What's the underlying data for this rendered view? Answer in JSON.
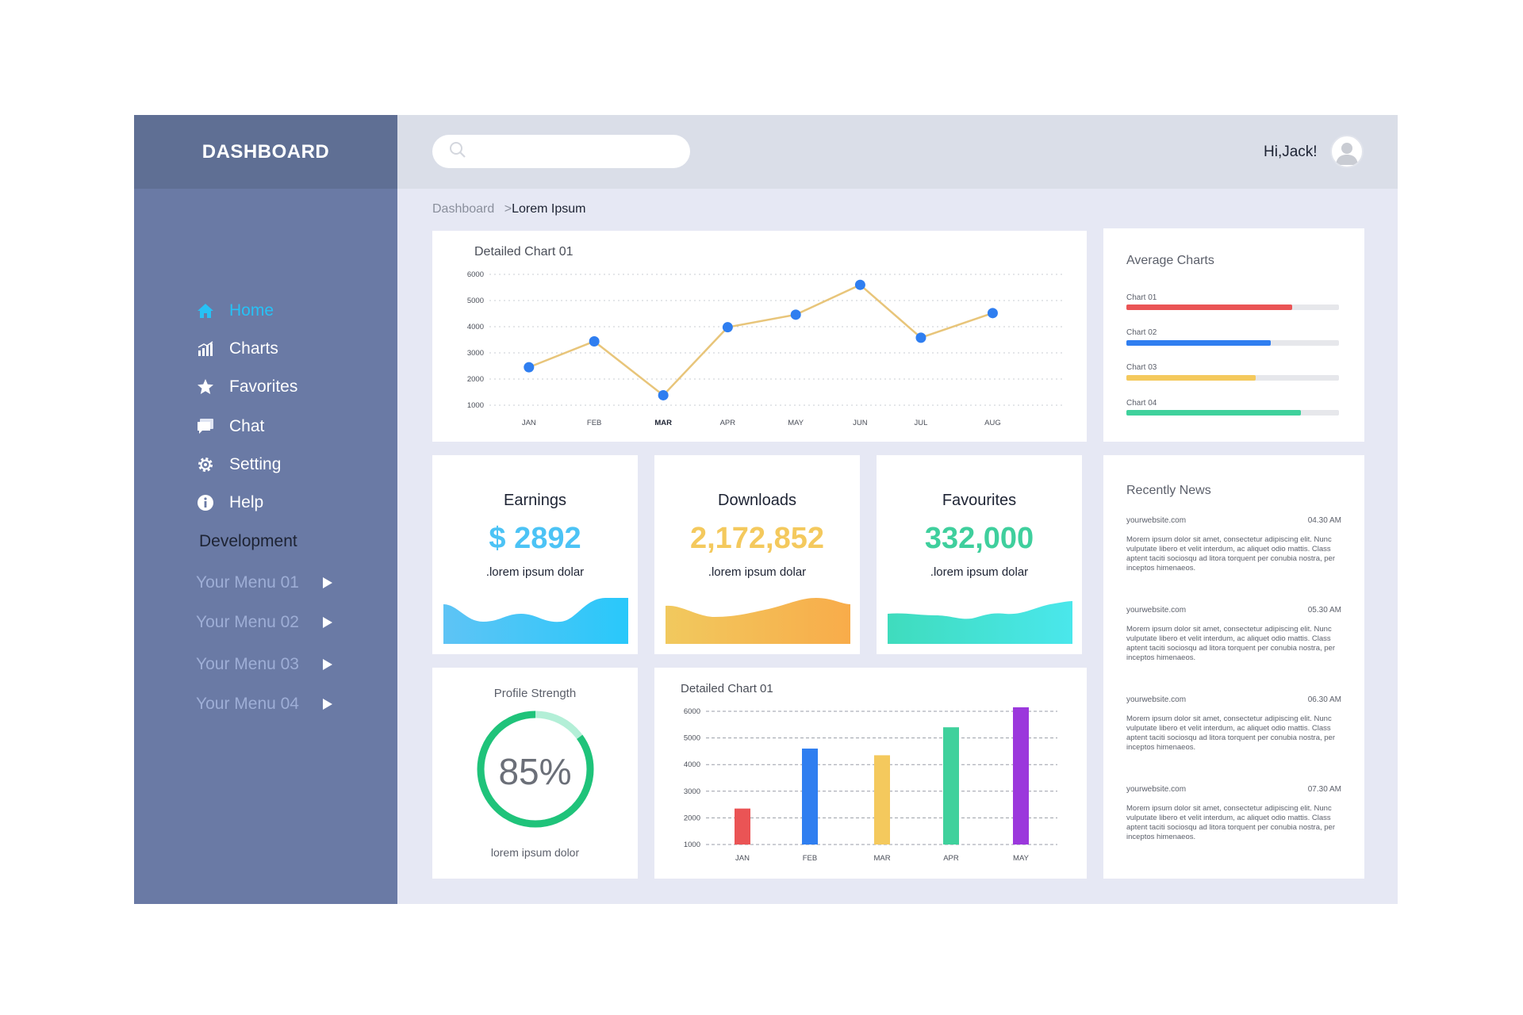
{
  "sidebar": {
    "brand": "DASHBOARD",
    "nav": [
      {
        "label": "Home",
        "icon": "home-icon",
        "active": true
      },
      {
        "label": "Charts",
        "icon": "bar-chart-icon"
      },
      {
        "label": "Favorites",
        "icon": "star-icon"
      },
      {
        "label": "Chat",
        "icon": "chat-icon"
      },
      {
        "label": "Setting",
        "icon": "gear-icon"
      },
      {
        "label": "Help",
        "icon": "info-icon"
      }
    ],
    "section_title": "Development",
    "menus": [
      "Your Menu 01",
      "Your Menu 02",
      "Your Menu 03",
      "Your Menu 04"
    ]
  },
  "header": {
    "search_placeholder": "",
    "greeting": "Hi,Jack!"
  },
  "breadcrumb": {
    "root": "Dashboard",
    "separator": ">",
    "current": "Lorem Ipsum"
  },
  "line_chart": {
    "title": "Detailed Chart 01",
    "chart_data": {
      "type": "line",
      "x": [
        "JAN",
        "FEB",
        "MAR",
        "APR",
        "MAY",
        "JUN",
        "JUL",
        "AUG"
      ],
      "values": [
        2450,
        3440,
        1380,
        3980,
        4460,
        5600,
        3580,
        4520
      ],
      "ylim": [
        1000,
        6000
      ],
      "yticks": [
        1000,
        2000,
        3000,
        4000,
        5000,
        6000
      ],
      "grid": true,
      "line_color": "#e8c57a",
      "point_color": "#2f7ef0"
    }
  },
  "average_charts": {
    "title": "Average Charts",
    "items": [
      {
        "label": "Chart 01",
        "value": 0.78,
        "color": "#ea5455"
      },
      {
        "label": "Chart 02",
        "value": 0.68,
        "color": "#2f7ef0"
      },
      {
        "label": "Chart 03",
        "value": 0.61,
        "color": "#f4c95d"
      },
      {
        "label": "Chart 04",
        "value": 0.82,
        "color": "#3fd19c"
      }
    ]
  },
  "stats": [
    {
      "title": "Earnings",
      "value": "$ 2892",
      "sub": ".lorem ipsum dolar",
      "color": "#4cc3f5"
    },
    {
      "title": "Downloads",
      "value": "2,172,852",
      "sub": ".lorem ipsum dolar",
      "color": "#f4c95d"
    },
    {
      "title": "Favourites",
      "value": "332,000",
      "sub": ".lorem ipsum dolar",
      "color": "#3fcf9d"
    }
  ],
  "profile": {
    "title": "Profile Strength",
    "value": 0.85,
    "value_text": "85%",
    "caption": "lorem ipsum dolor",
    "color": "#1fc37a",
    "track_color": "#b3efd7"
  },
  "bar_chart": {
    "title": "Detailed Chart 01",
    "chart_data": {
      "type": "bar",
      "categories": [
        "JAN",
        "FEB",
        "MAR",
        "APR",
        "MAY"
      ],
      "values": [
        2350,
        4600,
        4350,
        5400,
        6150
      ],
      "colors": [
        "#ea5455",
        "#2f7ef0",
        "#f4c95d",
        "#3fd19c",
        "#9b38dc"
      ],
      "ylim": [
        1000,
        6000
      ],
      "yticks": [
        1000,
        2000,
        3000,
        4000,
        5000,
        6000
      ],
      "grid": true
    }
  },
  "news": {
    "title": "Recently News",
    "items": [
      {
        "site": "yourwebsite.com",
        "time": "04.30 AM",
        "body": "Morem ipsum dolor sit amet, consectetur adipiscing elit. Nunc vulputate libero et velit interdum, ac aliquet odio mattis. Class aptent taciti sociosqu ad litora torquent per conubia nostra, per inceptos himenaeos."
      },
      {
        "site": "yourwebsite.com",
        "time": "05.30 AM",
        "body": "Morem ipsum dolor sit amet, consectetur adipiscing elit. Nunc vulputate libero et velit interdum, ac aliquet odio mattis. Class aptent taciti sociosqu ad litora torquent per conubia nostra, per inceptos himenaeos."
      },
      {
        "site": "yourwebsite.com",
        "time": "06.30 AM",
        "body": "Morem ipsum dolor sit amet, consectetur adipiscing elit. Nunc vulputate libero et velit interdum, ac aliquet odio mattis. Class aptent taciti sociosqu ad litora torquent per conubia nostra, per inceptos himenaeos."
      },
      {
        "site": "yourwebsite.com",
        "time": "07.30 AM",
        "body": "Morem ipsum dolor sit amet, consectetur adipiscing elit. Nunc vulputate libero et velit interdum, ac aliquet odio mattis. Class aptent taciti sociosqu ad litora torquent per conubia nostra, per inceptos himenaeos."
      }
    ]
  }
}
